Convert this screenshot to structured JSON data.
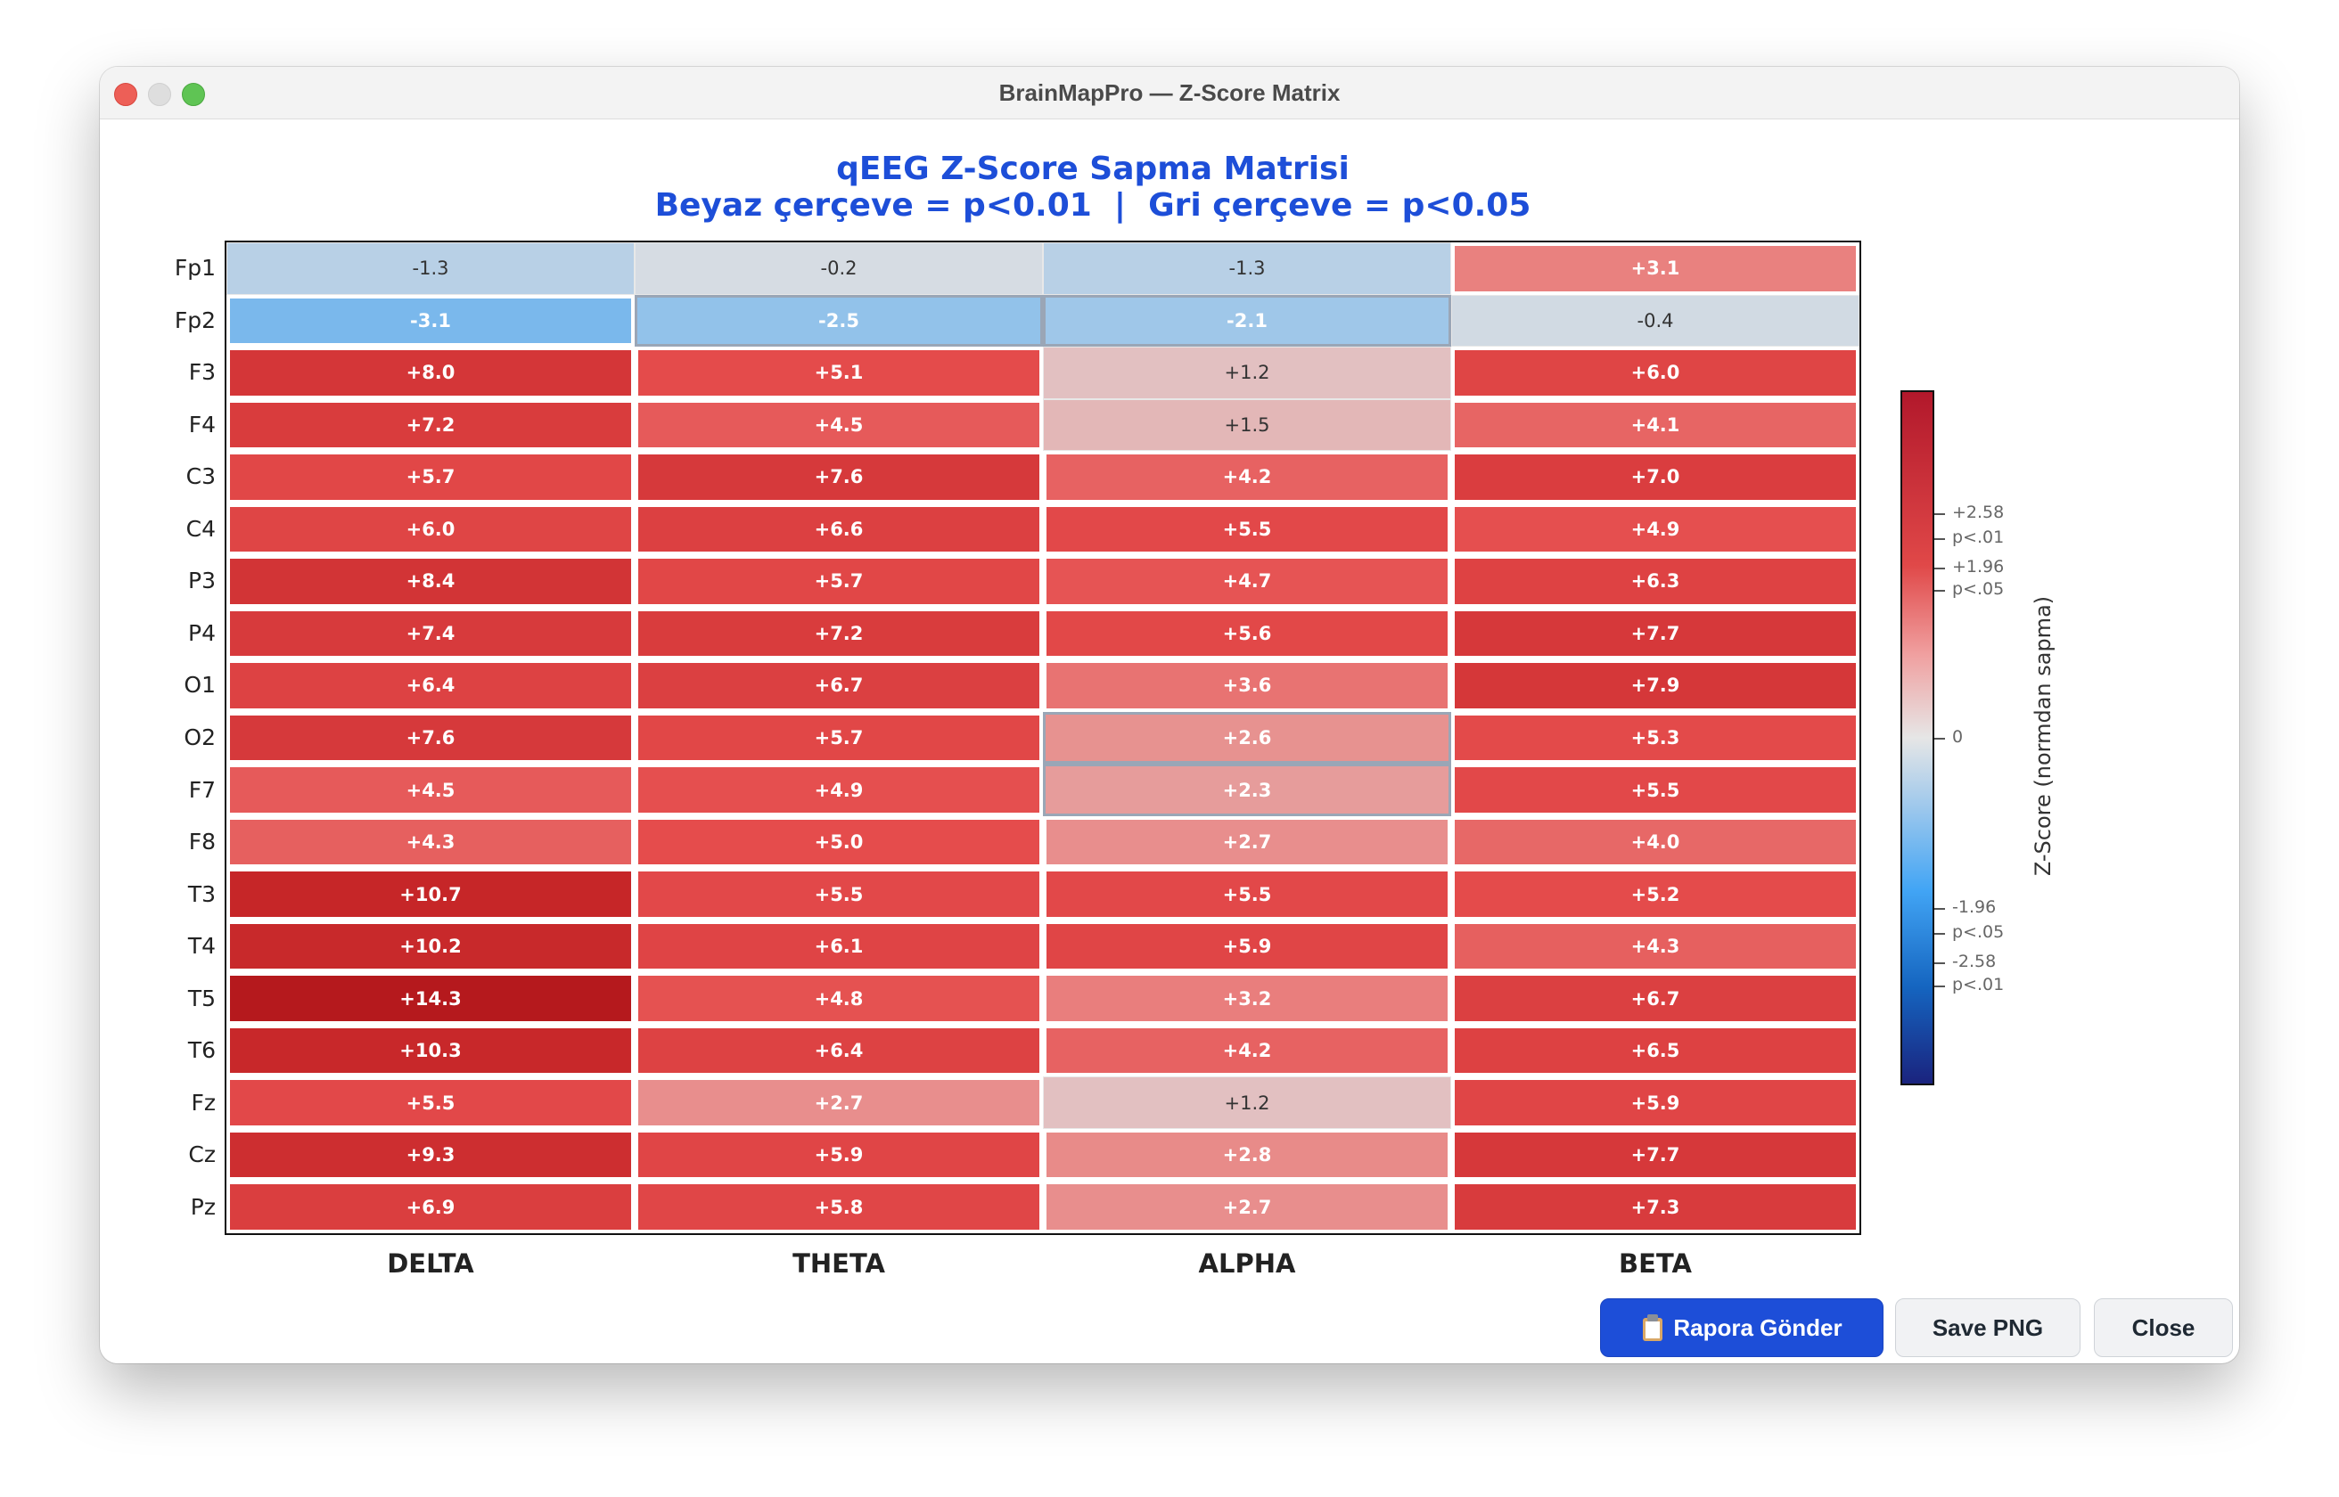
{
  "window": {
    "title": "BrainMapPro — Z-Score Matrix"
  },
  "colors": {
    "title_blue": "#1d4ed8",
    "significant_p01_border": "#ffffff",
    "significant_p05_border": "#9aa6b6"
  },
  "chart_data": {
    "type": "heatmap",
    "title": "qEEG Z-Score Sapma Matrisi",
    "subtitle": "Beyaz çerçeve = p<0.01  |  Gri çerçeve = p<0.05",
    "columns": [
      "DELTA",
      "THETA",
      "ALPHA",
      "BETA"
    ],
    "rows": [
      "Fp1",
      "Fp2",
      "F3",
      "F4",
      "C3",
      "C4",
      "P3",
      "P4",
      "O1",
      "O2",
      "F7",
      "F8",
      "T3",
      "T4",
      "T5",
      "T6",
      "Fz",
      "Cz",
      "Pz"
    ],
    "values": [
      [
        -1.3,
        -0.2,
        -1.3,
        3.1
      ],
      [
        -3.1,
        -2.5,
        -2.1,
        -0.4
      ],
      [
        8.0,
        5.1,
        1.2,
        6.0
      ],
      [
        7.2,
        4.5,
        1.5,
        4.1
      ],
      [
        5.7,
        7.6,
        4.2,
        7.0
      ],
      [
        6.0,
        6.6,
        5.5,
        4.9
      ],
      [
        8.4,
        5.7,
        4.7,
        6.3
      ],
      [
        7.4,
        7.2,
        5.6,
        7.7
      ],
      [
        6.4,
        6.7,
        3.6,
        7.9
      ],
      [
        7.6,
        5.7,
        2.6,
        5.3
      ],
      [
        4.5,
        4.9,
        2.3,
        5.5
      ],
      [
        4.3,
        5.0,
        2.7,
        4.0
      ],
      [
        10.7,
        5.5,
        5.5,
        5.2
      ],
      [
        10.2,
        6.1,
        5.9,
        4.3
      ],
      [
        14.3,
        4.8,
        3.2,
        6.7
      ],
      [
        10.3,
        6.4,
        4.2,
        6.5
      ],
      [
        5.5,
        2.7,
        1.2,
        5.9
      ],
      [
        9.3,
        5.9,
        2.8,
        7.7
      ],
      [
        6.9,
        5.8,
        2.7,
        7.3
      ]
    ],
    "cell_labels": [
      [
        "-1.3",
        "-0.2",
        "-1.3",
        "+3.1"
      ],
      [
        "-3.1",
        "-2.5",
        "-2.1",
        "-0.4"
      ],
      [
        "+8.0",
        "+5.1",
        "+1.2",
        "+6.0"
      ],
      [
        "+7.2",
        "+4.5",
        "+1.5",
        "+4.1"
      ],
      [
        "+5.7",
        "+7.6",
        "+4.2",
        "+7.0"
      ],
      [
        "+6.0",
        "+6.6",
        "+5.5",
        "+4.9"
      ],
      [
        "+8.4",
        "+5.7",
        "+4.7",
        "+6.3"
      ],
      [
        "+7.4",
        "+7.2",
        "+5.6",
        "+7.7"
      ],
      [
        "+6.4",
        "+6.7",
        "+3.6",
        "+7.9"
      ],
      [
        "+7.6",
        "+5.7",
        "+2.6",
        "+5.3"
      ],
      [
        "+4.5",
        "+4.9",
        "+2.3",
        "+5.5"
      ],
      [
        "+4.3",
        "+5.0",
        "+2.7",
        "+4.0"
      ],
      [
        "+10.7",
        "+5.5",
        "+5.5",
        "+5.2"
      ],
      [
        "+10.2",
        "+6.1",
        "+5.9",
        "+4.3"
      ],
      [
        "+14.3",
        "+4.8",
        "+3.2",
        "+6.7"
      ],
      [
        "+10.3",
        "+6.4",
        "+4.2",
        "+6.5"
      ],
      [
        "+5.5",
        "+2.7",
        "+1.2",
        "+5.9"
      ],
      [
        "+9.3",
        "+5.9",
        "+2.8",
        "+7.7"
      ],
      [
        "+6.9",
        "+5.8",
        "+2.7",
        "+7.3"
      ]
    ],
    "significance": [
      [
        "none",
        "none",
        "none",
        "p01"
      ],
      [
        "p01",
        "p05",
        "p05",
        "none"
      ],
      [
        "p01",
        "p01",
        "none",
        "p01"
      ],
      [
        "p01",
        "p01",
        "none",
        "p01"
      ],
      [
        "p01",
        "p01",
        "p01",
        "p01"
      ],
      [
        "p01",
        "p01",
        "p01",
        "p01"
      ],
      [
        "p01",
        "p01",
        "p01",
        "p01"
      ],
      [
        "p01",
        "p01",
        "p01",
        "p01"
      ],
      [
        "p01",
        "p01",
        "p01",
        "p01"
      ],
      [
        "p01",
        "p01",
        "p05",
        "p01"
      ],
      [
        "p01",
        "p01",
        "p05",
        "p01"
      ],
      [
        "p01",
        "p01",
        "p01",
        "p01"
      ],
      [
        "p01",
        "p01",
        "p01",
        "p01"
      ],
      [
        "p01",
        "p01",
        "p01",
        "p01"
      ],
      [
        "p01",
        "p01",
        "p01",
        "p01"
      ],
      [
        "p01",
        "p01",
        "p01",
        "p01"
      ],
      [
        "p01",
        "p01",
        "none",
        "p01"
      ],
      [
        "p01",
        "p01",
        "p01",
        "p01"
      ],
      [
        "p01",
        "p01",
        "p01",
        "p01"
      ]
    ],
    "colorbar": {
      "label": "Z-Score (normdan sapma)",
      "range": [
        -4,
        4
      ],
      "ticks": [
        {
          "value": 2.58,
          "label": "+2.58"
        },
        {
          "value": 2.3,
          "label": "p<.01"
        },
        {
          "value": 1.96,
          "label": "+1.96"
        },
        {
          "value": 1.7,
          "label": "p<.05"
        },
        {
          "value": 0,
          "label": "0"
        },
        {
          "value": -1.96,
          "label": "-1.96"
        },
        {
          "value": -2.25,
          "label": "p<.05"
        },
        {
          "value": -2.58,
          "label": "-2.58"
        },
        {
          "value": -2.85,
          "label": "p<.01"
        }
      ]
    }
  },
  "buttons": {
    "send_report": "Rapora Gönder",
    "save_png": "Save PNG",
    "close": "Close"
  }
}
